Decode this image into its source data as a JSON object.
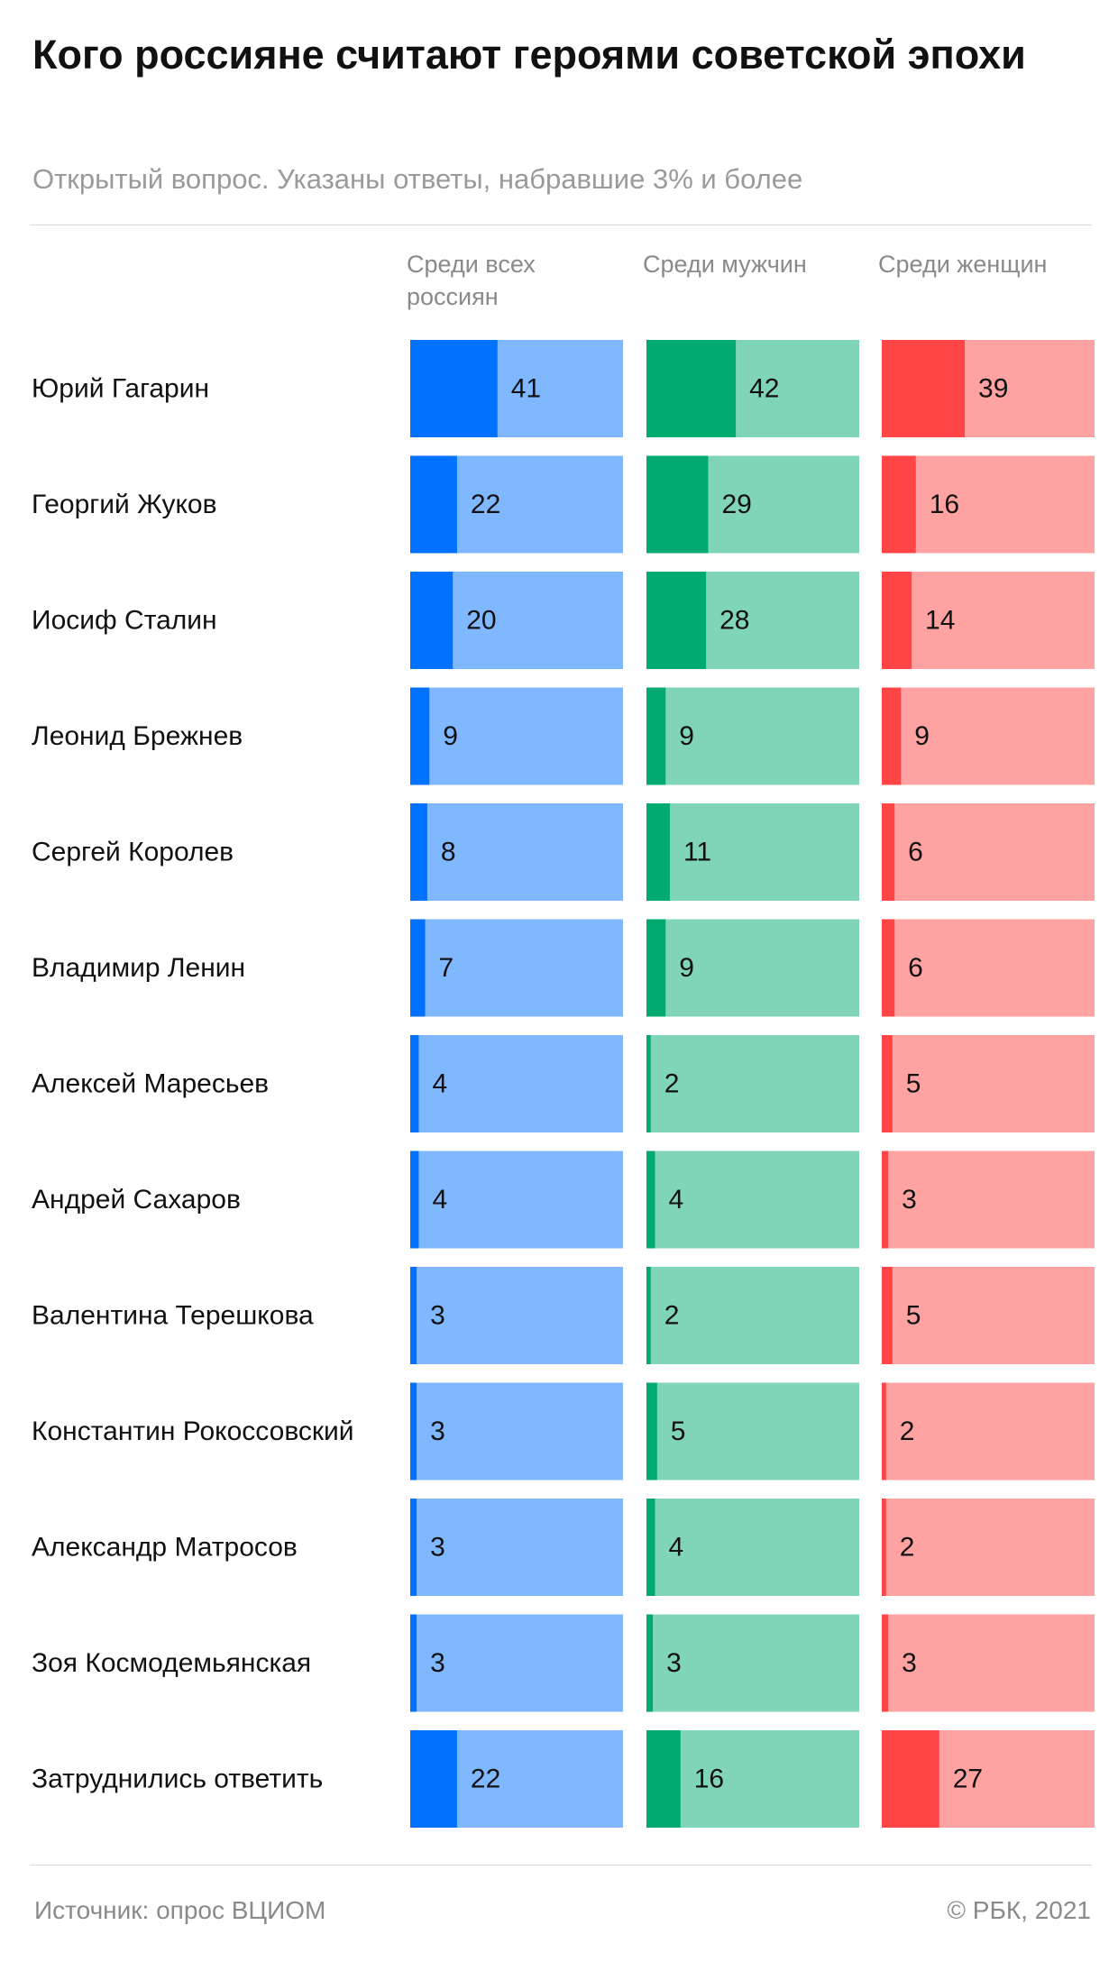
{
  "header": {
    "title": "Кого россияне считают героями советской эпохи",
    "subtitle": "Открытый вопрос. Указаны ответы, набравшие 3% и более"
  },
  "footer": {
    "source": "Источник: опрос ВЦИОМ",
    "credit": "©  РБК, 2021"
  },
  "chart_data": {
    "type": "bar",
    "orientation": "horizontal",
    "scale_max": 100,
    "categories": [
      "Юрий Гагарин",
      "Георгий Жуков",
      "Иосиф Сталин",
      "Леонид Брежнев",
      "Сергей Королев",
      "Владимир Ленин",
      "Алексей Маресьев",
      "Андрей Сахаров",
      "Валентина Терешкова",
      "Константин Рокоссовский",
      "Александр Матросов",
      "Зоя Космодемьянская",
      "Затруднились ответить"
    ],
    "series": [
      {
        "name": "Среди всех россиян",
        "values": [
          41,
          22,
          20,
          9,
          8,
          7,
          4,
          4,
          3,
          3,
          3,
          3,
          22
        ],
        "color_dark": "#0072ff",
        "color_light": "#80b8ff"
      },
      {
        "name": "Среди мужчин",
        "values": [
          42,
          29,
          28,
          9,
          11,
          9,
          2,
          4,
          2,
          5,
          4,
          3,
          16
        ],
        "color_dark": "#00aa70",
        "color_light": "#80d4b8"
      },
      {
        "name": "Среди женщин",
        "values": [
          39,
          16,
          14,
          9,
          6,
          6,
          5,
          3,
          5,
          2,
          2,
          3,
          27
        ],
        "color_dark": "#ff4545",
        "color_light": "#ffa2a2"
      }
    ]
  }
}
